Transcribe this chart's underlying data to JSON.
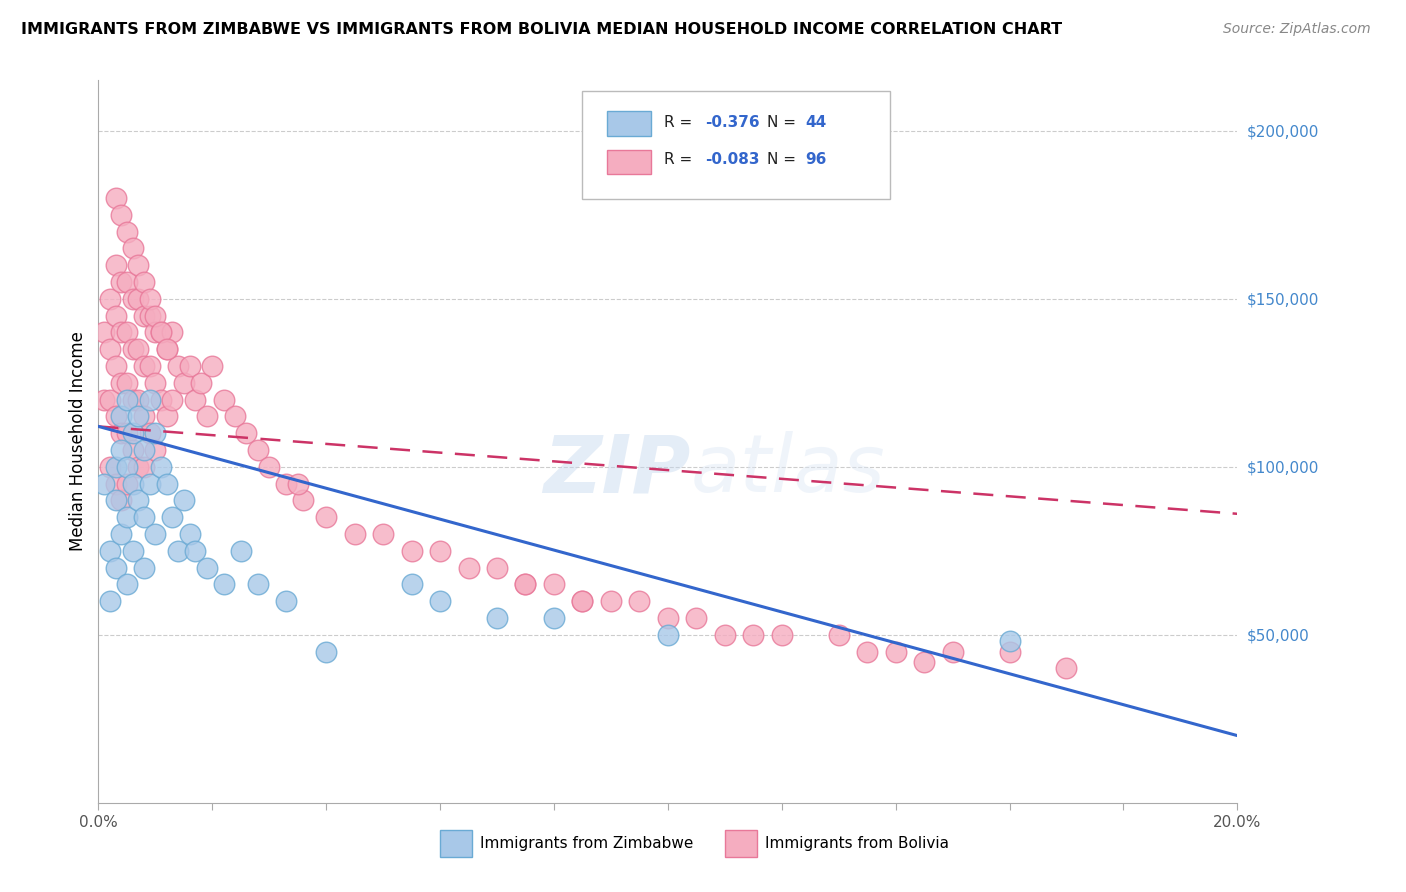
{
  "title": "IMMIGRANTS FROM ZIMBABWE VS IMMIGRANTS FROM BOLIVIA MEDIAN HOUSEHOLD INCOME CORRELATION CHART",
  "source": "Source: ZipAtlas.com",
  "ylabel": "Median Household Income",
  "xlim": [
    0.0,
    0.2
  ],
  "ylim": [
    0,
    215000
  ],
  "ytick_right": [
    0,
    50000,
    100000,
    150000,
    200000
  ],
  "ytick_right_labels": [
    "",
    "$50,000",
    "$100,000",
    "$150,000",
    "$200,000"
  ],
  "zimbabwe_color": "#a8c8e8",
  "bolivia_color": "#f5adc0",
  "zimbabwe_edge": "#6aaad4",
  "bolivia_edge": "#e87899",
  "trend_zimbabwe_color": "#3366cc",
  "trend_bolivia_color": "#cc3366",
  "legend_r_zim": "-0.376",
  "legend_n_zim": "44",
  "legend_r_bol": "-0.083",
  "legend_n_bol": "96",
  "watermark": "ZIPatlas",
  "zim_trend_x0": 0.0,
  "zim_trend_y0": 112000,
  "zim_trend_x1": 0.2,
  "zim_trend_y1": 20000,
  "bol_trend_x0": 0.0,
  "bol_trend_y0": 112000,
  "bol_trend_x1": 0.2,
  "bol_trend_y1": 86000,
  "zimbabwe_x": [
    0.001,
    0.002,
    0.002,
    0.003,
    0.003,
    0.003,
    0.004,
    0.004,
    0.004,
    0.005,
    0.005,
    0.005,
    0.005,
    0.006,
    0.006,
    0.006,
    0.007,
    0.007,
    0.008,
    0.008,
    0.008,
    0.009,
    0.009,
    0.01,
    0.01,
    0.011,
    0.012,
    0.013,
    0.014,
    0.015,
    0.016,
    0.017,
    0.019,
    0.022,
    0.025,
    0.028,
    0.033,
    0.04,
    0.055,
    0.06,
    0.07,
    0.08,
    0.1,
    0.16
  ],
  "zimbabwe_y": [
    95000,
    75000,
    60000,
    100000,
    90000,
    70000,
    115000,
    105000,
    80000,
    120000,
    100000,
    85000,
    65000,
    110000,
    95000,
    75000,
    115000,
    90000,
    105000,
    85000,
    70000,
    120000,
    95000,
    110000,
    80000,
    100000,
    95000,
    85000,
    75000,
    90000,
    80000,
    75000,
    70000,
    65000,
    75000,
    65000,
    60000,
    45000,
    65000,
    60000,
    55000,
    55000,
    50000,
    48000
  ],
  "bolivia_x": [
    0.001,
    0.001,
    0.002,
    0.002,
    0.002,
    0.002,
    0.003,
    0.003,
    0.003,
    0.003,
    0.003,
    0.004,
    0.004,
    0.004,
    0.004,
    0.004,
    0.005,
    0.005,
    0.005,
    0.005,
    0.005,
    0.006,
    0.006,
    0.006,
    0.006,
    0.007,
    0.007,
    0.007,
    0.007,
    0.008,
    0.008,
    0.008,
    0.008,
    0.009,
    0.009,
    0.009,
    0.01,
    0.01,
    0.01,
    0.011,
    0.011,
    0.012,
    0.012,
    0.013,
    0.013,
    0.014,
    0.015,
    0.016,
    0.017,
    0.018,
    0.019,
    0.02,
    0.022,
    0.024,
    0.026,
    0.028,
    0.03,
    0.033,
    0.036,
    0.04,
    0.045,
    0.05,
    0.055,
    0.06,
    0.065,
    0.07,
    0.075,
    0.08,
    0.085,
    0.09,
    0.095,
    0.1,
    0.105,
    0.11,
    0.12,
    0.13,
    0.14,
    0.15,
    0.16,
    0.17,
    0.003,
    0.004,
    0.005,
    0.006,
    0.007,
    0.008,
    0.009,
    0.01,
    0.011,
    0.012,
    0.035,
    0.075,
    0.085,
    0.115,
    0.135,
    0.145
  ],
  "bolivia_y": [
    140000,
    120000,
    150000,
    135000,
    120000,
    100000,
    160000,
    145000,
    130000,
    115000,
    95000,
    155000,
    140000,
    125000,
    110000,
    90000,
    155000,
    140000,
    125000,
    110000,
    95000,
    150000,
    135000,
    120000,
    105000,
    150000,
    135000,
    120000,
    100000,
    145000,
    130000,
    115000,
    100000,
    145000,
    130000,
    110000,
    140000,
    125000,
    105000,
    140000,
    120000,
    135000,
    115000,
    140000,
    120000,
    130000,
    125000,
    130000,
    120000,
    125000,
    115000,
    130000,
    120000,
    115000,
    110000,
    105000,
    100000,
    95000,
    90000,
    85000,
    80000,
    80000,
    75000,
    75000,
    70000,
    70000,
    65000,
    65000,
    60000,
    60000,
    60000,
    55000,
    55000,
    50000,
    50000,
    50000,
    45000,
    45000,
    45000,
    40000,
    180000,
    175000,
    170000,
    165000,
    160000,
    155000,
    150000,
    145000,
    140000,
    135000,
    95000,
    65000,
    60000,
    50000,
    45000,
    42000
  ]
}
